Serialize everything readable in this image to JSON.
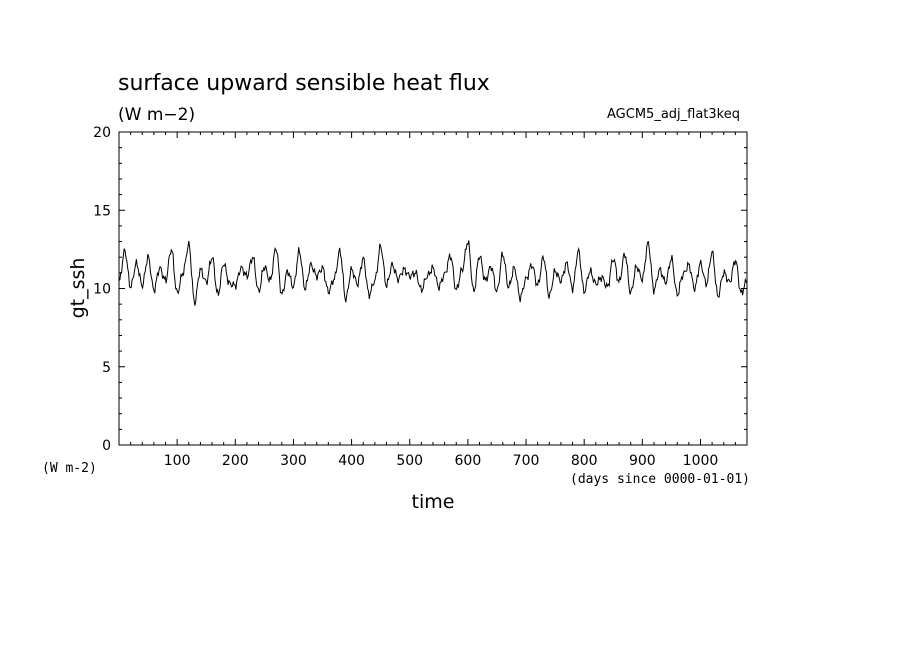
{
  "chart_data": {
    "type": "line",
    "title": "surface upward sensible heat flux",
    "units": "(W m−2)",
    "run_label": "AGCM5_adj_flat3keq",
    "ylabel": "gt_ssh",
    "y_unit_label": "(W m-2)",
    "xlabel": "time",
    "x_unit_label": "(days since 0000-01-01)",
    "xlim": [
      0,
      1080
    ],
    "ylim": [
      0,
      20
    ],
    "x_ticks": [
      100,
      200,
      300,
      400,
      500,
      600,
      700,
      800,
      900,
      1000
    ],
    "y_ticks": [
      0,
      5,
      10,
      15,
      20
    ],
    "grid": false,
    "series": [
      {
        "x": [
          0,
          10,
          20,
          30,
          40,
          50,
          60,
          70,
          80,
          90,
          100,
          110,
          120,
          130,
          140,
          150,
          160,
          170,
          180,
          190,
          200,
          210,
          220,
          230,
          240,
          250,
          260,
          270,
          280,
          290,
          300,
          310,
          320,
          330,
          340,
          350,
          360,
          370,
          380,
          390,
          400,
          410,
          420,
          430,
          440,
          450,
          460,
          470,
          480,
          490,
          500,
          510,
          520,
          530,
          540,
          550,
          560,
          570,
          580,
          590,
          600,
          610,
          620,
          630,
          640,
          650,
          660,
          670,
          680,
          690,
          700,
          710,
          720,
          730,
          740,
          750,
          760,
          770,
          780,
          790,
          800,
          810,
          820,
          830,
          840,
          850,
          860,
          870,
          880,
          890,
          900,
          910,
          920,
          930,
          940,
          950,
          960,
          970,
          980,
          990,
          1000,
          1010,
          1020,
          1030,
          1040,
          1050,
          1060,
          1070,
          1080
        ],
        "values": [
          10.4,
          12.4,
          10.1,
          11.6,
          10.2,
          12.0,
          9.9,
          11.3,
          10.5,
          12.5,
          9.7,
          11.0,
          12.8,
          9.1,
          11.2,
          10.4,
          12.0,
          9.6,
          11.6,
          10.3,
          10.2,
          11.3,
          10.8,
          12.0,
          9.8,
          11.4,
          10.5,
          12.6,
          9.6,
          11.1,
          10.1,
          12.4,
          10.0,
          11.5,
          10.8,
          11.3,
          9.8,
          10.6,
          12.4,
          9.3,
          11.2,
          10.3,
          11.9,
          9.6,
          10.5,
          12.7,
          10.2,
          11.5,
          10.6,
          11.2,
          10.8,
          11.0,
          9.9,
          10.8,
          11.3,
          10.1,
          10.9,
          12.1,
          9.9,
          11.2,
          13.0,
          9.8,
          12.1,
          10.5,
          11.4,
          9.8,
          12.2,
          10.1,
          11.3,
          9.4,
          10.6,
          11.5,
          10.2,
          12.0,
          9.5,
          11.1,
          10.5,
          11.6,
          10.0,
          12.4,
          9.8,
          11.1,
          10.3,
          10.7,
          10.1,
          11.9,
          10.4,
          12.2,
          9.7,
          11.4,
          10.6,
          12.9,
          9.9,
          11.2,
          10.4,
          11.9,
          9.6,
          10.9,
          11.5,
          10.0,
          11.6,
          10.3,
          12.3,
          9.5,
          11.0,
          10.4,
          11.8,
          9.7,
          10.5
        ]
      }
    ]
  }
}
